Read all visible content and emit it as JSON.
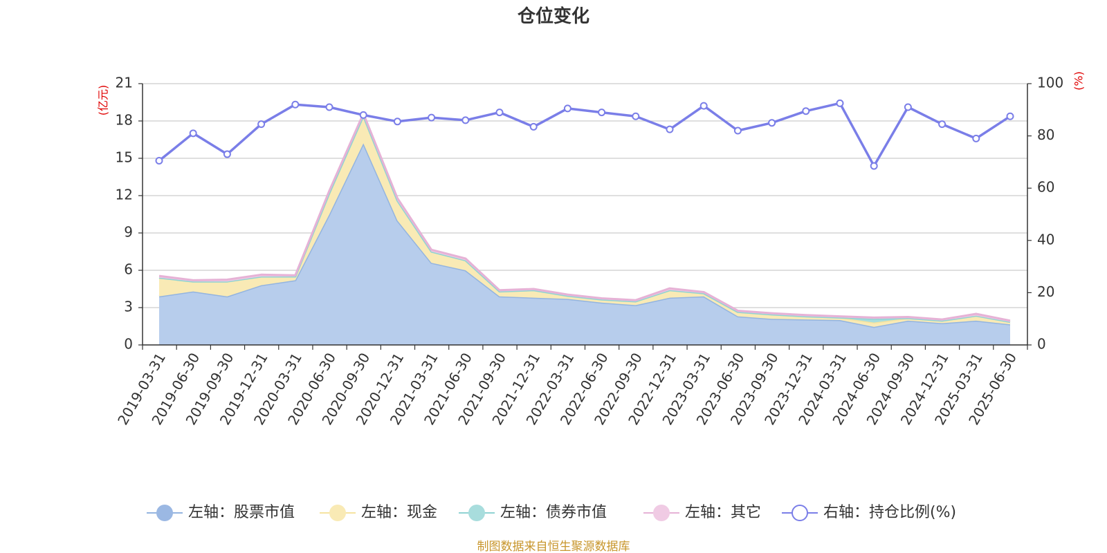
{
  "chart_data": {
    "type": "area",
    "title": "仓位变化",
    "source_note": "制图数据来自恒生聚源数据库",
    "left_unit": "(亿元)",
    "right_unit": "(%)",
    "left_axis": {
      "min": 0,
      "max": 21,
      "ticks": [
        "0",
        "3",
        "6",
        "9",
        "12",
        "15",
        "18",
        "21"
      ]
    },
    "right_axis": {
      "min": 0,
      "max": 100,
      "ticks": [
        "0",
        "20",
        "40",
        "60",
        "80",
        "100"
      ]
    },
    "grid": true,
    "legend_position": "bottom",
    "categories": [
      "2019-03-31",
      "2019-06-30",
      "2019-09-30",
      "2019-12-31",
      "2020-03-31",
      "2020-06-30",
      "2020-09-30",
      "2020-12-31",
      "2021-03-31",
      "2021-06-30",
      "2021-09-30",
      "2021-12-31",
      "2022-03-31",
      "2022-06-30",
      "2022-09-30",
      "2022-12-31",
      "2023-03-31",
      "2023-06-30",
      "2023-09-30",
      "2023-12-31",
      "2024-03-31",
      "2024-06-30",
      "2024-09-30",
      "2024-12-31",
      "2025-03-31",
      "2025-06-30"
    ],
    "series": [
      {
        "name": "左轴：股票市值",
        "axis": "left",
        "kind": "stacked-area",
        "color": "#93b4e0",
        "fill": "#b7cdec",
        "values": [
          3.9,
          4.3,
          3.9,
          4.8,
          5.2,
          10.5,
          16.2,
          10.0,
          6.6,
          6.0,
          3.9,
          3.8,
          3.7,
          3.4,
          3.2,
          3.8,
          3.9,
          2.3,
          2.1,
          2.05,
          2.0,
          1.45,
          1.95,
          1.75,
          1.95,
          1.65
        ]
      },
      {
        "name": "左轴：现金",
        "axis": "left",
        "kind": "stacked-area",
        "color": "#f5e3a0",
        "fill": "#f9eab5",
        "values": [
          1.5,
          0.8,
          1.2,
          0.7,
          0.3,
          1.7,
          2.2,
          1.6,
          0.9,
          0.8,
          0.4,
          0.6,
          0.25,
          0.25,
          0.3,
          0.6,
          0.25,
          0.35,
          0.35,
          0.25,
          0.2,
          0.35,
          0.2,
          0.2,
          0.4,
          0.2
        ]
      },
      {
        "name": "左轴：债券市值",
        "axis": "left",
        "kind": "stacked-area",
        "color": "#8fd3d3",
        "fill": "#a8dddd",
        "values": [
          0,
          0,
          0,
          0,
          0,
          0,
          0,
          0,
          0,
          0,
          0,
          0,
          0,
          0,
          0,
          0,
          0,
          0,
          0,
          0,
          0,
          0.3,
          0,
          0,
          0,
          0
        ]
      },
      {
        "name": "左轴：其它",
        "axis": "left",
        "kind": "stacked-area",
        "color": "#e6b2d6",
        "fill": "#f0cbe4",
        "values": [
          0.15,
          0.1,
          0.15,
          0.15,
          0.1,
          0.2,
          0.2,
          0.2,
          0.15,
          0.15,
          0.1,
          0.1,
          0.1,
          0.1,
          0.1,
          0.15,
          0.1,
          0.1,
          0.1,
          0.1,
          0.1,
          0.1,
          0.1,
          0.1,
          0.15,
          0.1
        ]
      },
      {
        "name": "右轴：持仓比例(%)",
        "axis": "right",
        "kind": "line",
        "color": "#7a7ee8",
        "values": [
          70.5,
          81.0,
          73.0,
          84.5,
          92.0,
          91.0,
          88.0,
          85.5,
          87.0,
          86.0,
          89.0,
          83.5,
          90.5,
          89.0,
          87.5,
          82.5,
          91.5,
          82.0,
          85.0,
          89.5,
          92.5,
          68.5,
          91.0,
          84.5,
          79.0,
          87.5
        ]
      }
    ]
  }
}
